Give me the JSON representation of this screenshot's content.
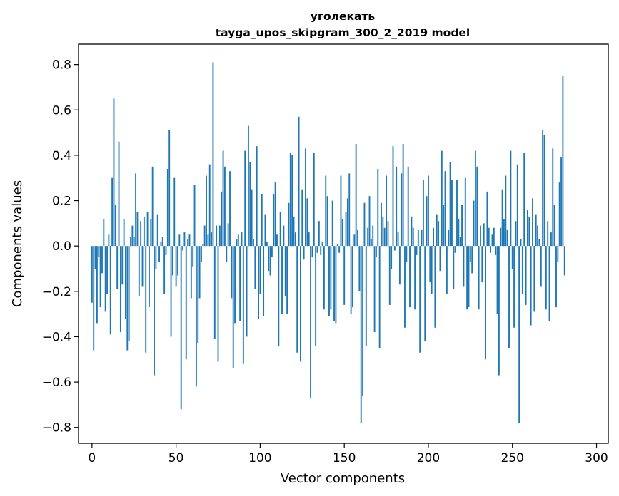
{
  "chart_data": {
    "type": "bar",
    "title": "уголекать",
    "subtitle": "tayga_upos_skipgram_300_2_2019 model",
    "xlabel": "Vector components",
    "ylabel": "Components values",
    "xlim": [
      -8,
      307
    ],
    "ylim": [
      -0.87,
      0.89
    ],
    "xticks": [
      0,
      50,
      100,
      150,
      200,
      250,
      300
    ],
    "yticks": [
      -0.8,
      -0.6,
      -0.4,
      -0.2,
      0.0,
      0.2,
      0.4,
      0.6,
      0.8
    ],
    "ytick_labels": [
      "−0.8",
      "−0.6",
      "−0.4",
      "−0.2",
      "0.0",
      "0.2",
      "0.4",
      "0.6",
      "0.8"
    ],
    "bar_color": "#1f77b4",
    "series": [
      {
        "name": "components",
        "values": [
          -0.25,
          -0.46,
          -0.1,
          -0.34,
          -0.05,
          -0.27,
          -0.12,
          0.12,
          -0.29,
          -0.21,
          0.05,
          -0.39,
          0.3,
          0.65,
          0.18,
          -0.19,
          0.46,
          -0.38,
          -0.17,
          0.12,
          -0.32,
          -0.46,
          -0.42,
          0.04,
          0.09,
          0.04,
          0.32,
          0.15,
          -0.22,
          0.11,
          -0.18,
          0.13,
          -0.47,
          0.15,
          -0.27,
          0.12,
          0.35,
          -0.57,
          -0.1,
          0.14,
          -0.07,
          0.02,
          0.04,
          -0.21,
          -0.04,
          0.34,
          0.51,
          -0.4,
          -0.13,
          0.3,
          -0.18,
          -0.13,
          0.05,
          -0.72,
          -0.02,
          0.06,
          -0.5,
          0.03,
          0.05,
          -0.23,
          -0.09,
          0.27,
          -0.62,
          -0.43,
          -0.23,
          -0.07,
          0.01,
          0.09,
          0.31,
          0.05,
          0.36,
          0.06,
          0.81,
          -0.41,
          0.09,
          -0.51,
          0.09,
          0.24,
          0.42,
          0.35,
          -0.07,
          0.1,
          0.33,
          -0.23,
          -0.54,
          -0.34,
          0.03,
          0.05,
          -0.33,
          0.06,
          -0.52,
          0.42,
          -0.4,
          0.53,
          0.37,
          0.25,
          0.03,
          -0.19,
          0.44,
          -0.32,
          -0.21,
          0.23,
          -0.31,
          0.14,
          0.02,
          -0.11,
          -0.13,
          -0.05,
          0.23,
          0.28,
          0.05,
          -0.44,
          0.15,
          -0.3,
          0.09,
          -0.22,
          -0.3,
          0.19,
          0.41,
          0.4,
          0.13,
          0.06,
          -0.47,
          0.57,
          -0.51,
          0.25,
          -0.06,
          0.43,
          0.21,
          0.06,
          -0.67,
          -0.05,
          0.41,
          -0.44,
          -0.03,
          0.11,
          -0.04,
          0.02,
          -0.28,
          0.31,
          0.22,
          -0.31,
          -0.28,
          0.2,
          -0.33,
          -0.34,
          0.01,
          -0.03,
          0.31,
          0.12,
          -0.26,
          0.15,
          0.21,
          0.32,
          -0.3,
          -0.27,
          0.05,
          0.45,
          0.07,
          -0.2,
          -0.78,
          -0.66,
          0.19,
          -0.44,
          0.08,
          0.22,
          0.03,
          0.09,
          -0.38,
          -0.05,
          0.34,
          -0.45,
          0.19,
          0.13,
          0.08,
          0.31,
          0.11,
          -0.26,
          -0.1,
          0.44,
          -0.02,
          0.35,
          0.06,
          -0.17,
          0.32,
          0.45,
          -0.36,
          -0.07,
          0.35,
          -0.27,
          0.13,
          0.08,
          -0.28,
          -0.04,
          0.07,
          -0.47,
          0.07,
          0.29,
          -0.42,
          0.22,
          0.31,
          -0.16,
          -0.21,
          0.08,
          -0.36,
          0.14,
          0.11,
          -0.11,
          0.42,
          0.18,
          0.33,
          -0.21,
          0.07,
          0.37,
          0.29,
          -0.19,
          -0.03,
          0.29,
          0.12,
          0.04,
          0.18,
          -0.18,
          0.3,
          -0.28,
          -0.27,
          -0.07,
          -0.12,
          0.2,
          0.42,
          0.35,
          -0.28,
          0.09,
          -0.16,
          0.1,
          -0.5,
          0.24,
          0.08,
          -0.03,
          0.05,
          0.08,
          -0.04,
          -0.3,
          -0.57,
          0.08,
          0.25,
          0.12,
          0.31,
          0.07,
          -0.45,
          0.42,
          -0.1,
          -0.36,
          0.11,
          0.36,
          -0.78,
          0.03,
          -0.21,
          0.41,
          -0.26,
          0.16,
          0.13,
          -0.35,
          0.21,
          -0.29,
          0.14,
          0.09,
          0.03,
          -0.18,
          0.51,
          0.49,
          -0.28,
          0.11,
          -0.33,
          0.06,
          0.43,
          0.18,
          -0.27,
          -0.07,
          0.28,
          0.39,
          0.75,
          -0.13
        ]
      }
    ]
  }
}
